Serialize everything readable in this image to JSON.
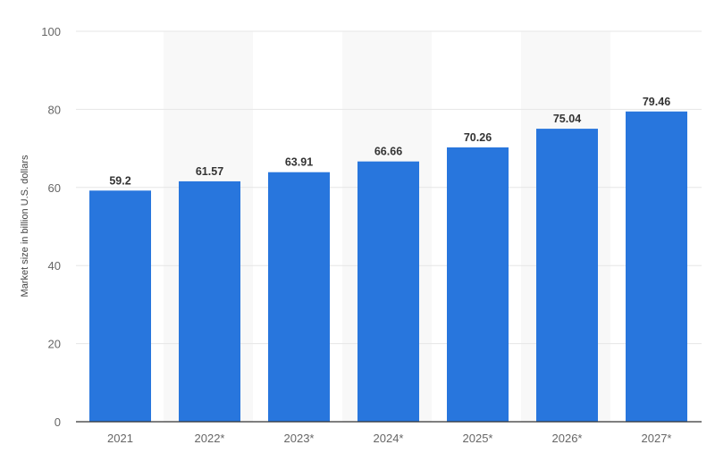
{
  "chart_data": {
    "type": "bar",
    "categories": [
      "2021",
      "2022*",
      "2023*",
      "2024*",
      "2025*",
      "2026*",
      "2027*"
    ],
    "values": [
      59.2,
      61.57,
      63.91,
      66.66,
      70.26,
      75.04,
      79.46
    ],
    "value_labels": [
      "59.2",
      "61.57",
      "63.91",
      "66.66",
      "70.26",
      "75.04",
      "79.46"
    ],
    "title": "",
    "xlabel": "",
    "ylabel": "Market size in billion U.S. dollars",
    "ylim": [
      0,
      100
    ],
    "yticks": [
      0,
      20,
      40,
      60,
      80,
      100
    ],
    "grid": true,
    "bar_color": "#2876dd",
    "band_color": "#f8f8f8"
  }
}
